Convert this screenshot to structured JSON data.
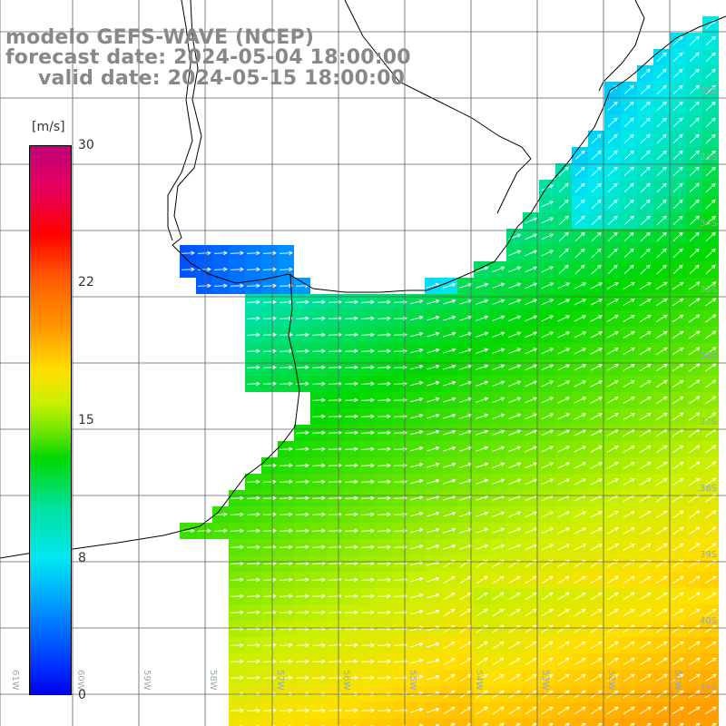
{
  "header": {
    "line1": "modelo GEFS-WAVE (NCEP)",
    "line2": "forecast date: 2024-05-04 18:00:00",
    "line3": "valid date: 2024-05-15 18:00:00"
  },
  "colorbar": {
    "unit": "[m/s]",
    "ticks": [
      "30",
      "22",
      "15",
      "8",
      "0"
    ],
    "colors": [
      "#c0007a",
      "#ff0000",
      "#ff9e00",
      "#ffe000",
      "#00d800",
      "#00e8f0",
      "#0070ff",
      "#0000f0"
    ]
  },
  "map": {
    "lat_labels": [
      "32S",
      "33S",
      "34S",
      "35S",
      "36S",
      "37S",
      "38S",
      "39S",
      "40S",
      "41S"
    ],
    "lon_labels": [
      "61W",
      "60W",
      "59W",
      "58W",
      "57W",
      "56W",
      "55W",
      "54W",
      "53W",
      "52W",
      "51W"
    ],
    "land_color": "#ffffff",
    "grid_color": "#606060",
    "arrow_color": "#ffffff"
  }
}
